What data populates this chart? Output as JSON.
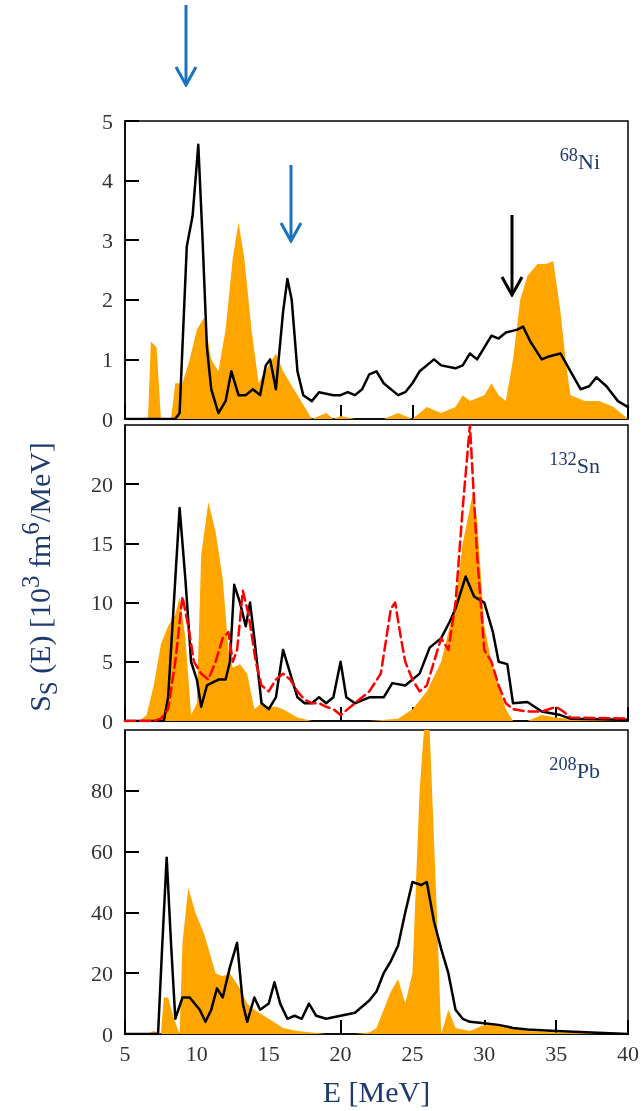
{
  "chart_data": [
    {
      "type": "line",
      "xlim": [
        5,
        40
      ],
      "xticks": [
        5,
        10,
        15,
        20,
        25,
        30,
        35,
        40
      ],
      "ylim": [
        0,
        5
      ],
      "yticks": [
        0,
        1,
        2,
        3,
        4,
        5
      ],
      "tick_labels": "y",
      "marker": "none",
      "annotations": [
        "$^{68}$Ni"
      ],
      "series": [
        {
          "type": "area",
          "color": "#ffa500",
          "x": [
            5,
            6.6,
            6.8,
            7.2,
            7.5,
            8.2,
            8.5,
            9,
            9.5,
            10,
            10.5,
            11,
            11.5,
            12,
            12.5,
            12.9,
            13.3,
            13.8,
            14.3,
            15,
            15.5,
            16,
            16.5,
            17.5,
            18,
            19,
            19.5,
            20,
            21,
            23,
            24,
            25,
            26,
            27,
            28,
            28.5,
            29,
            30,
            30.5,
            31,
            31.5,
            32,
            32.5,
            33,
            33.7,
            34.3,
            34.8,
            35.3,
            35.7,
            36,
            37,
            38,
            39,
            40
          ],
          "values": [
            0,
            0,
            1.3,
            1.2,
            0,
            0,
            0.6,
            0.6,
            1.0,
            1.5,
            1.7,
            1.0,
            0.8,
            1.5,
            2.7,
            3.3,
            2.7,
            1.5,
            0.6,
            0.9,
            1.1,
            0.8,
            0.6,
            0.2,
            0,
            0.1,
            0,
            0.05,
            0,
            0,
            0.1,
            0,
            0.2,
            0.1,
            0.2,
            0.4,
            0.3,
            0.4,
            0.6,
            0.4,
            0.3,
            1.0,
            2.0,
            2.4,
            2.6,
            2.6,
            2.65,
            1.8,
            0.9,
            0.4,
            0.3,
            0.3,
            0.2,
            0
          ]
        },
        {
          "color": "#000000",
          "x": [
            5,
            8.5,
            8.8,
            9.3,
            9.7,
            10.1,
            10.4,
            10.7,
            11,
            11.5,
            12,
            12.4,
            12.9,
            13.4,
            13.9,
            14.4,
            14.8,
            15.1,
            15.5,
            16,
            16.3,
            16.6,
            17,
            17.4,
            18,
            18.5,
            19.5,
            20,
            20.5,
            21,
            21.5,
            22,
            22.5,
            23,
            24,
            24.5,
            25,
            25.5,
            26,
            26.5,
            27,
            28,
            28.5,
            29,
            29.5,
            30.5,
            31,
            31.5,
            32.3,
            32.7,
            33.2,
            34,
            34.5,
            35.3,
            36,
            36.7,
            37.3,
            37.8,
            38.5,
            39.3,
            40
          ],
          "values": [
            0,
            0,
            0.1,
            2.9,
            3.4,
            4.6,
            3,
            1.2,
            0.5,
            0.1,
            0.3,
            0.8,
            0.4,
            0.4,
            0.5,
            0.4,
            0.9,
            1.0,
            0.5,
            1.8,
            2.35,
            2.0,
            0.8,
            0.4,
            0.3,
            0.45,
            0.4,
            0.4,
            0.45,
            0.4,
            0.5,
            0.75,
            0.8,
            0.6,
            0.4,
            0.45,
            0.6,
            0.8,
            0.9,
            1.0,
            0.9,
            0.85,
            0.9,
            1.1,
            1.0,
            1.4,
            1.35,
            1.45,
            1.5,
            1.55,
            1.3,
            1.0,
            1.05,
            1.1,
            0.8,
            0.5,
            0.55,
            0.7,
            0.55,
            0.3,
            0.2
          ]
        }
      ]
    },
    {
      "type": "line",
      "xlim": [
        5,
        40
      ],
      "xticks": [
        5,
        10,
        15,
        20,
        25,
        30,
        35,
        40
      ],
      "ylim": [
        0,
        25
      ],
      "yticks": [
        0,
        5,
        10,
        15,
        20
      ],
      "tick_labels": "y",
      "marker": "none",
      "ylabel": "S$_{S}$ (E) [10$^{3}$ fm$^{6}$/MeV]",
      "annotations": [
        "$^{132}$Sn"
      ],
      "series": [
        {
          "type": "area",
          "color": "#ffa500",
          "x": [
            5,
            6,
            6.5,
            7,
            7.5,
            8,
            8.5,
            8.8,
            9.2,
            9.6,
            10,
            10.3,
            10.8,
            11.3,
            11.8,
            12.2,
            12.5,
            13,
            13.5,
            14,
            14.5,
            15,
            15.5,
            16,
            17,
            18,
            20,
            22,
            24,
            25,
            26,
            27,
            28,
            28.5,
            29.2,
            29.5,
            30,
            30.5,
            31,
            31.5,
            32,
            33,
            34,
            35,
            36,
            40
          ],
          "values": [
            0,
            0,
            0.5,
            3,
            6.5,
            8,
            9,
            10.5,
            7,
            0.5,
            1.5,
            14,
            18.5,
            16,
            12,
            6,
            4.5,
            4.8,
            4,
            1,
            1.5,
            1.2,
            1.2,
            1,
            0.3,
            0,
            0,
            0,
            0.2,
            1.0,
            2.5,
            5,
            10,
            15,
            19.2,
            17,
            8,
            5,
            3,
            1,
            0,
            0,
            0.5,
            0.3,
            0.2,
            0
          ]
        },
        {
          "color": "#000000",
          "x": [
            5,
            7.7,
            8,
            8.5,
            8.8,
            9.2,
            9.6,
            10,
            10.3,
            10.7,
            11.5,
            12,
            12.3,
            12.6,
            13,
            13.4,
            13.7,
            14,
            14.5,
            15,
            15.5,
            16,
            16.5,
            17,
            17.5,
            18,
            18.5,
            19,
            19.5,
            20,
            20.4,
            21,
            22,
            23,
            23.6,
            24.5,
            25.5,
            26.2,
            27,
            27.6,
            28,
            28.7,
            29.3,
            30,
            30.6,
            31,
            31.6,
            32,
            33,
            34,
            35.3,
            36,
            40
          ],
          "values": [
            0,
            0,
            2,
            12,
            18,
            12,
            5,
            3.5,
            1.2,
            3,
            3.5,
            3.5,
            5,
            11.5,
            10,
            8,
            10,
            7,
            1.5,
            1,
            2,
            6,
            4,
            2,
            1.5,
            1.5,
            2,
            1.5,
            2,
            5,
            2,
            1.5,
            2,
            2,
            3.2,
            3,
            4,
            6.2,
            7,
            8.4,
            9.5,
            12.2,
            10.5,
            10,
            7.5,
            5,
            4.8,
            1.5,
            1.6,
            0.8,
            0.5,
            0.2,
            0.1
          ]
        },
        {
          "color": "#ff0000",
          "line_style": "dashed",
          "x": [
            5,
            7,
            7.5,
            8,
            8.5,
            9,
            9.4,
            9.8,
            10.3,
            10.8,
            11.3,
            11.8,
            12.2,
            12.5,
            12.8,
            13.2,
            13.6,
            14.1,
            14.5,
            15,
            15.5,
            16,
            16.5,
            17,
            17.5,
            18,
            18.5,
            19,
            19.5,
            20,
            20.5,
            21,
            21.5,
            22,
            22.8,
            23.5,
            23.8,
            24.2,
            24.5,
            25,
            25.5,
            26,
            26.5,
            27,
            27.5,
            28,
            28.5,
            29,
            29.5,
            30,
            30.5,
            31,
            31.5,
            32,
            33,
            34,
            35,
            35.5,
            36,
            40
          ],
          "values": [
            0,
            0,
            0.2,
            1,
            5,
            10.5,
            8,
            5,
            4,
            3.5,
            5,
            7,
            7.5,
            5,
            6,
            11,
            9,
            5,
            3,
            2.5,
            3.5,
            4,
            3.5,
            2.5,
            1.8,
            1.5,
            1.5,
            1.2,
            1,
            0.5,
            1,
            1.5,
            2,
            2.5,
            4,
            9.5,
            10,
            7,
            5,
            3.5,
            2.5,
            3,
            5,
            7,
            6,
            10,
            18,
            25,
            14,
            6,
            5,
            3,
            1.5,
            1,
            0.8,
            0.8,
            1.2,
            0.8,
            0.3,
            0.2
          ]
        }
      ]
    },
    {
      "type": "line",
      "xlim": [
        5,
        40
      ],
      "xticks": [
        5,
        10,
        15,
        20,
        25,
        30,
        35,
        40
      ],
      "ylim": [
        0,
        100
      ],
      "yticks": [
        0,
        20,
        40,
        60,
        80
      ],
      "marker": "none",
      "xlabel": "E [MeV]",
      "annotations": [
        "$^{208}$Pb"
      ],
      "series": [
        {
          "type": "area",
          "color": "#ffa500",
          "x": [
            5,
            6.5,
            7,
            7.5,
            7.7,
            8,
            8.4,
            8.8,
            9,
            9.4,
            9.9,
            10.5,
            11,
            11.3,
            11.8,
            12.3,
            13,
            13.5,
            14,
            15,
            16,
            17,
            18,
            19,
            21,
            22,
            22.5,
            23,
            23.5,
            24,
            24.5,
            25,
            25.5,
            25.8,
            26.2,
            26.7,
            27,
            27.5,
            28,
            29,
            30,
            31,
            32,
            33,
            35,
            40
          ],
          "values": [
            0,
            0,
            1,
            0,
            12,
            12,
            5,
            0,
            30,
            48,
            40,
            33,
            25,
            20,
            19,
            20,
            15,
            10,
            8,
            5,
            2,
            1,
            0.5,
            0,
            0,
            0.5,
            2,
            8,
            14,
            18,
            10,
            20,
            80,
            100,
            100,
            40,
            0,
            8,
            2,
            1,
            3,
            3,
            2,
            1,
            0.5,
            0
          ]
        },
        {
          "color": "#000000",
          "x": [
            5,
            7.3,
            7.6,
            7.9,
            8.2,
            8.5,
            9,
            9.5,
            10.2,
            10.6,
            11,
            11.4,
            11.8,
            12.3,
            12.8,
            13.2,
            13.5,
            14,
            14.4,
            15,
            15.4,
            15.8,
            16.3,
            16.8,
            17.3,
            17.8,
            18.3,
            19,
            20,
            21,
            22,
            22.5,
            23,
            23.5,
            24,
            24.5,
            25,
            25.6,
            26,
            26.5,
            27,
            27.5,
            28,
            28.5,
            29,
            30,
            31,
            32,
            33,
            35,
            40
          ],
          "values": [
            0,
            0,
            30,
            58,
            30,
            5,
            12,
            12,
            8,
            4,
            8,
            15,
            12,
            22,
            30,
            10,
            4,
            12,
            8,
            10,
            17,
            10,
            5,
            6,
            5,
            10,
            6,
            5,
            6,
            7,
            11,
            14,
            20,
            24,
            29,
            40,
            50,
            49,
            50,
            37,
            28,
            20,
            8,
            5,
            4,
            3.5,
            3,
            2,
            1.5,
            1,
            0
          ]
        }
      ]
    }
  ]
}
